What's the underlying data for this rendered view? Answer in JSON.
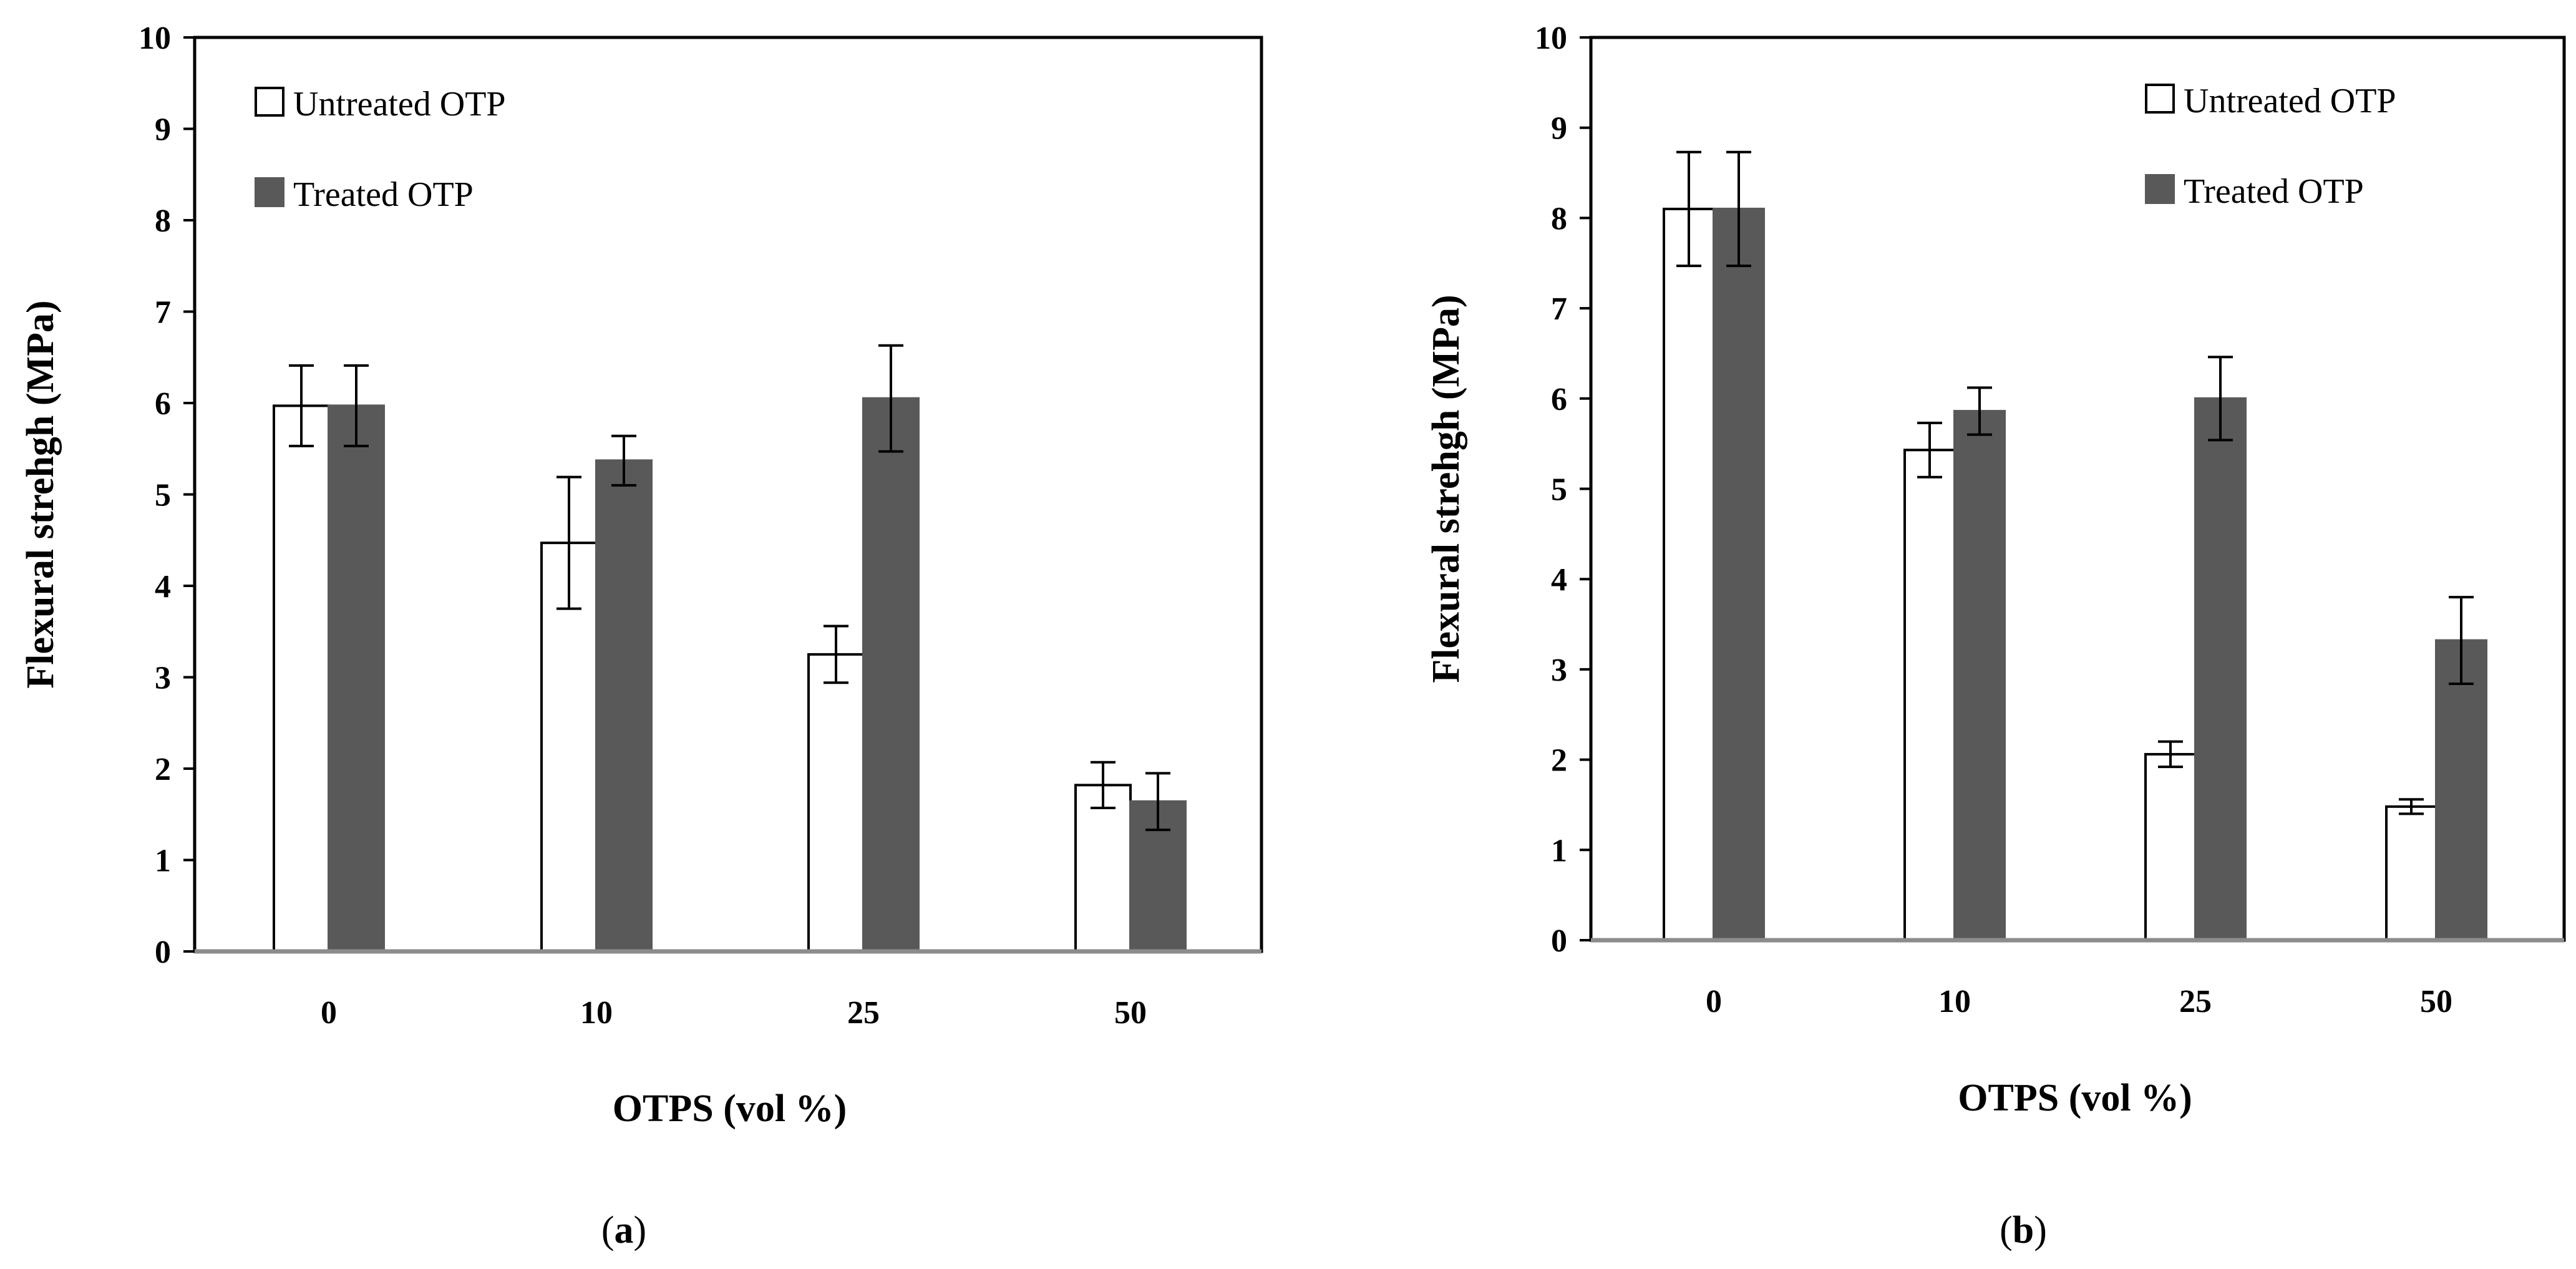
{
  "chart_data": [
    {
      "type": "bar",
      "panel_label": "a",
      "categories": [
        "0",
        "10",
        "25",
        "50"
      ],
      "series": [
        {
          "name": "Untreated OTP",
          "values": [
            5.97,
            4.47,
            3.25,
            1.82
          ],
          "errors": [
            0.44,
            0.72,
            0.31,
            0.25
          ],
          "color": "#ffffff",
          "stroke": "#000000"
        },
        {
          "name": "Treated OTP",
          "values": [
            5.97,
            5.37,
            6.05,
            1.64
          ],
          "errors": [
            0.44,
            0.27,
            0.58,
            0.31
          ],
          "color": "#595959",
          "stroke": "#595959"
        }
      ],
      "title": "",
      "xlabel": "OTPS (vol %)",
      "ylabel": "Flexural strehgh (MPa)",
      "ylim": [
        0,
        10
      ],
      "yticks": [
        "0",
        "1",
        "2",
        "3",
        "4",
        "5",
        "6",
        "7",
        "8",
        "9",
        "10"
      ],
      "legend_position": "top-left",
      "grid": false
    },
    {
      "type": "bar",
      "panel_label": "b",
      "categories": [
        "0",
        "10",
        "25",
        "50"
      ],
      "series": [
        {
          "name": "Untreated OTP",
          "values": [
            8.1,
            5.43,
            2.06,
            1.48
          ],
          "errors": [
            0.63,
            0.3,
            0.14,
            0.08
          ],
          "color": "#ffffff",
          "stroke": "#000000"
        },
        {
          "name": "Treated OTP",
          "values": [
            8.1,
            5.86,
            6.0,
            3.32
          ],
          "errors": [
            0.63,
            0.26,
            0.46,
            0.48
          ],
          "color": "#595959",
          "stroke": "#595959"
        }
      ],
      "title": "",
      "xlabel": "OTPS (vol %)",
      "ylabel": "Flexural strehgh (MPa)",
      "ylim": [
        0,
        10
      ],
      "yticks": [
        "0",
        "1",
        "2",
        "3",
        "4",
        "5",
        "6",
        "7",
        "8",
        "9",
        "10"
      ],
      "legend_position": "top-right",
      "grid": false
    }
  ],
  "captions": [
    {
      "open": "(",
      "letter": "a",
      "close": ")"
    },
    {
      "open": "(",
      "letter": "b",
      "close": ")"
    }
  ]
}
